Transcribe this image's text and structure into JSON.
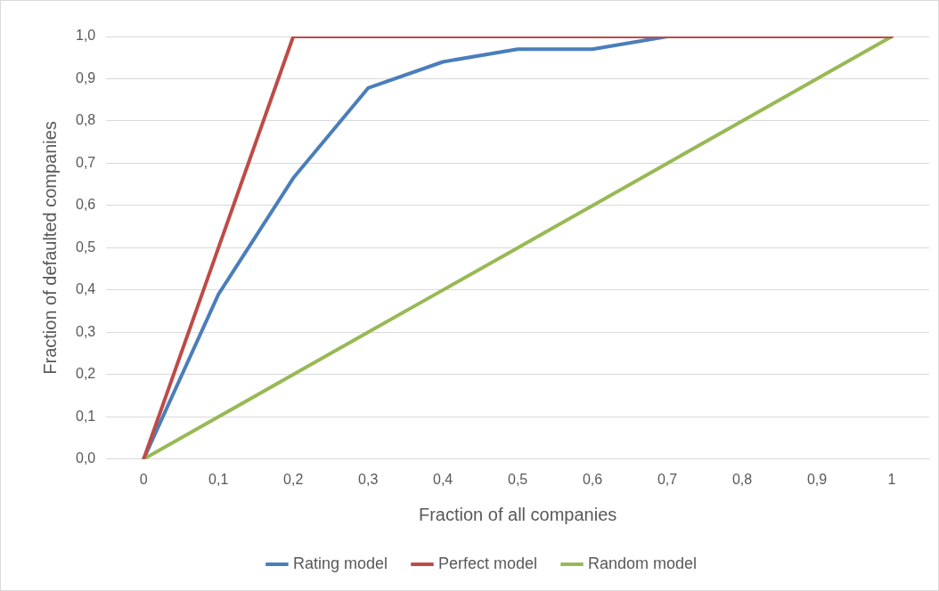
{
  "chart_data": {
    "type": "line",
    "xlabel": "Fraction of all companies",
    "ylabel": "Fraction of defaulted companies",
    "categories": [
      "0",
      "0,1",
      "0,2",
      "0,3",
      "0,4",
      "0,5",
      "0,6",
      "0,7",
      "0,8",
      "0,9",
      "1"
    ],
    "series": [
      {
        "name": "Rating model",
        "color": "#4a7ebb",
        "values": [
          0,
          0.39,
          0.665,
          0.878,
          0.94,
          0.97,
          0.97,
          1.0,
          null,
          null,
          null
        ]
      },
      {
        "name": "Perfect model",
        "color": "#be4b48",
        "values": [
          0,
          0.5,
          1.0,
          1.0,
          1.0,
          1.0,
          1.0,
          1.0,
          1.0,
          1.0,
          1.0
        ]
      },
      {
        "name": "Random model",
        "color": "#98b954",
        "values": [
          0,
          0.1,
          0.2,
          0.3,
          0.4,
          0.5,
          0.6,
          0.7,
          0.8,
          0.9,
          1.0
        ]
      }
    ],
    "ylim": [
      0,
      1
    ],
    "yticks": [
      {
        "value": 0,
        "label": "0,0"
      },
      {
        "value": 0.1,
        "label": "0,1"
      },
      {
        "value": 0.2,
        "label": "0,2"
      },
      {
        "value": 0.3,
        "label": "0,3"
      },
      {
        "value": 0.4,
        "label": "0,4"
      },
      {
        "value": 0.5,
        "label": "0,5"
      },
      {
        "value": 0.6,
        "label": "0,6"
      },
      {
        "value": 0.7,
        "label": "0,7"
      },
      {
        "value": 0.8,
        "label": "0,8"
      },
      {
        "value": 0.9,
        "label": "0,9"
      },
      {
        "value": 1,
        "label": "1,0"
      }
    ],
    "grid": "y",
    "legend": "bottom",
    "marker": "none",
    "line_style": "solid"
  }
}
